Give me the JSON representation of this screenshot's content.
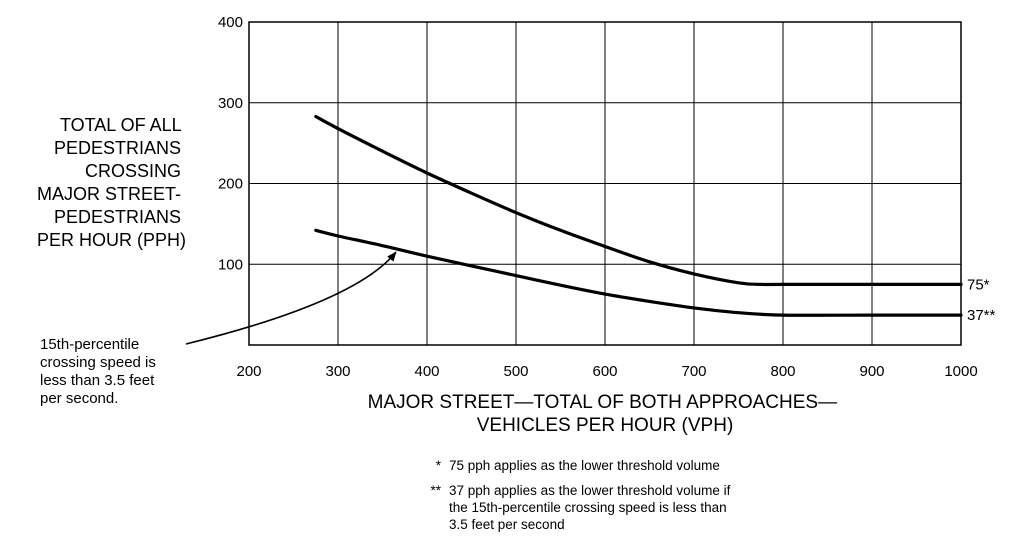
{
  "chart_data": {
    "type": "line",
    "title": "",
    "ylabel_lines": [
      "TOTAL OF ALL",
      "PEDESTRIANS",
      "CROSSING",
      "MAJOR STREET-",
      "PEDESTRIANS",
      "PER HOUR (PPH)"
    ],
    "xlabel_lines": [
      "MAJOR STREET—TOTAL OF BOTH APPROACHES—",
      "VEHICLES PER HOUR (VPH)"
    ],
    "xlim": [
      200,
      1000
    ],
    "ylim": [
      0,
      400
    ],
    "x_ticks": [
      "200",
      "300",
      "400",
      "500",
      "600",
      "700",
      "800",
      "900",
      "1000"
    ],
    "y_ticks": [
      "100",
      "200",
      "300",
      "400"
    ],
    "grid": true,
    "series": [
      {
        "end_label": "75*",
        "points": [
          [
            275,
            283
          ],
          [
            300,
            268
          ],
          [
            350,
            240
          ],
          [
            400,
            213
          ],
          [
            450,
            188
          ],
          [
            500,
            164
          ],
          [
            550,
            142
          ],
          [
            600,
            122
          ],
          [
            650,
            103
          ],
          [
            700,
            88
          ],
          [
            750,
            77
          ],
          [
            775,
            75
          ],
          [
            800,
            75
          ],
          [
            900,
            75
          ],
          [
            1000,
            75
          ]
        ]
      },
      {
        "end_label": "37**",
        "points": [
          [
            275,
            142
          ],
          [
            300,
            135
          ],
          [
            350,
            123
          ],
          [
            400,
            110
          ],
          [
            450,
            98
          ],
          [
            500,
            86
          ],
          [
            550,
            74
          ],
          [
            600,
            63
          ],
          [
            650,
            54
          ],
          [
            700,
            46
          ],
          [
            750,
            40
          ],
          [
            800,
            37
          ],
          [
            900,
            37
          ],
          [
            1000,
            37
          ]
        ]
      }
    ],
    "annotation": {
      "lines": [
        "15th-percentile",
        "crossing speed is",
        "less than 3.5 feet",
        "per second."
      ],
      "target": [
        365,
        115
      ]
    },
    "footnotes": [
      {
        "mark": "*",
        "lines": [
          "75 pph applies as the lower threshold volume"
        ]
      },
      {
        "mark": "**",
        "lines": [
          "37 pph applies as the lower threshold volume if",
          "the 15th-percentile crossing speed is less than",
          "3.5 feet per second"
        ]
      }
    ]
  }
}
